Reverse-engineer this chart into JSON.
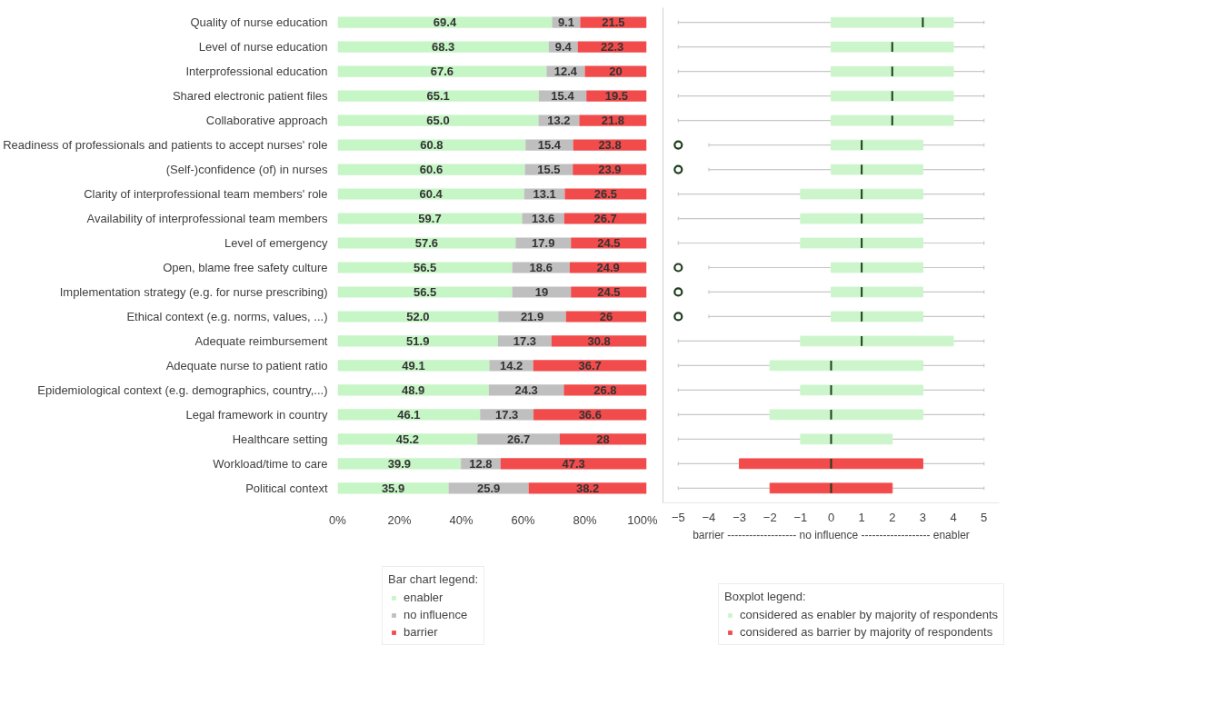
{
  "chart_data": [
    {
      "type": "bar",
      "orientation": "horizontal",
      "stacked": true,
      "legend": "bottom",
      "legend_title": "Bar chart legend:",
      "grid": false,
      "categories": [
        "Quality of nurse education",
        "Level of nurse education",
        "Interprofessional education",
        "Shared electronic patient files",
        "Collaborative approach",
        "Readiness of professionals and patients to accept nurses' role",
        "(Self-)confidence (of) in nurses",
        "Clarity of interprofessional team members' role",
        "Availability of interprofessional team members",
        "Level of emergency",
        "Open, blame free safety culture",
        "Implementation strategy (e.g. for nurse prescribing)",
        "Ethical context (e.g. norms, values, ...)",
        "Adequate reimbursement",
        "Adequate nurse to patient ratio",
        "Epidemiological context (e.g. demographics, country,...)",
        "Legal framework in country",
        "Healthcare setting",
        "Workload/time to care",
        "Political context"
      ],
      "xlim": [
        0,
        100
      ],
      "xticks": [
        {
          "value": 0,
          "label": "0%"
        },
        {
          "value": 20,
          "label": "20%"
        },
        {
          "value": 40,
          "label": "40%"
        },
        {
          "value": 60,
          "label": "60%"
        },
        {
          "value": 80,
          "label": "80%"
        },
        {
          "value": 100,
          "label": "100%"
        }
      ],
      "series": [
        {
          "name": "enabler",
          "color": "#c6f5c6",
          "values": [
            69.4,
            68.3,
            67.6,
            65.1,
            65.0,
            60.8,
            60.6,
            60.4,
            59.7,
            57.6,
            56.5,
            56.5,
            52.0,
            51.9,
            49.1,
            48.9,
            46.1,
            45.2,
            39.9,
            35.9
          ],
          "value_labels": [
            "69.4",
            "68.3",
            "67.6",
            "65.1",
            "65.0",
            "60.8",
            "60.6",
            "60.4",
            "59.7",
            "57.6",
            "56.5",
            "56.5",
            "52.0",
            "51.9",
            "49.1",
            "48.9",
            "46.1",
            "45.2",
            "39.9",
            "35.9"
          ]
        },
        {
          "name": "no influence",
          "color": "#bfbfbf",
          "values": [
            9.1,
            9.4,
            12.4,
            15.4,
            13.2,
            15.4,
            15.5,
            13.1,
            13.6,
            17.9,
            18.6,
            19,
            21.9,
            17.3,
            14.2,
            24.3,
            17.3,
            26.7,
            12.8,
            25.9
          ],
          "value_labels": [
            "9.1",
            "9.4",
            "12.4",
            "15.4",
            "13.2",
            "15.4",
            "15.5",
            "13.1",
            "13.6",
            "17.9",
            "18.6",
            "19",
            "21.9",
            "17.3",
            "14.2",
            "24.3",
            "17.3",
            "26.7",
            "12.8",
            "25.9"
          ]
        },
        {
          "name": "barrier",
          "color": "#f24b4b",
          "values": [
            21.5,
            22.3,
            20,
            19.5,
            21.8,
            23.8,
            23.9,
            26.5,
            26.7,
            24.5,
            24.9,
            24.5,
            26,
            30.8,
            36.7,
            26.8,
            36.6,
            28,
            47.3,
            38.2
          ],
          "value_labels": [
            "21.5",
            "22.3",
            "20",
            "19.5",
            "21.8",
            "23.8",
            "23.9",
            "26.5",
            "26.7",
            "24.5",
            "24.9",
            "24.5",
            "26",
            "30.8",
            "36.7",
            "26.8",
            "36.6",
            "28",
            "47.3",
            "38.2"
          ]
        }
      ]
    },
    {
      "type": "box",
      "orientation": "horizontal",
      "legend": "bottom",
      "legend_title": "Boxplot legend:",
      "grid": false,
      "tick_labels": "x",
      "xlabel": "barrier ------------------- no influence ------------------- enabler",
      "xlim": [
        -5.5,
        5.5
      ],
      "xticks": [
        -5,
        -4,
        -3,
        -2,
        -1,
        0,
        1,
        2,
        3,
        4,
        5
      ],
      "series": [
        {
          "name": "considered as enabler by majority of respondents",
          "color": "#ccf5cc",
          "boxes": [
            {
              "low": -5,
              "q1": 0,
              "median": 3,
              "q3": 4,
              "high": 5
            },
            {
              "low": -5,
              "q1": 0,
              "median": 2,
              "q3": 4,
              "high": 5
            },
            {
              "low": -5,
              "q1": 0,
              "median": 2,
              "q3": 4,
              "high": 5
            },
            {
              "low": -5,
              "q1": 0,
              "median": 2,
              "q3": 4,
              "high": 5
            },
            {
              "low": -5,
              "q1": 0,
              "median": 2,
              "q3": 4,
              "high": 5
            },
            {
              "low": -4,
              "q1": 0,
              "median": 1,
              "q3": 3,
              "high": 5,
              "outliers": [
                -5
              ]
            },
            {
              "low": -4,
              "q1": 0,
              "median": 1,
              "q3": 3,
              "high": 5,
              "outliers": [
                -5
              ]
            },
            {
              "low": -5,
              "q1": -1,
              "median": 1,
              "q3": 3,
              "high": 5
            },
            {
              "low": -5,
              "q1": -1,
              "median": 1,
              "q3": 3,
              "high": 5
            },
            {
              "low": -5,
              "q1": -1,
              "median": 1,
              "q3": 3,
              "high": 5
            },
            {
              "low": -4,
              "q1": 0,
              "median": 1,
              "q3": 3,
              "high": 5,
              "outliers": [
                -5
              ]
            },
            {
              "low": -4,
              "q1": 0,
              "median": 1,
              "q3": 3,
              "high": 5,
              "outliers": [
                -5
              ]
            },
            {
              "low": -4,
              "q1": 0,
              "median": 1,
              "q3": 3,
              "high": 5,
              "outliers": [
                -5
              ]
            },
            {
              "low": -5,
              "q1": -1,
              "median": 1,
              "q3": 4,
              "high": 5
            },
            {
              "low": -5,
              "q1": -2,
              "median": 0,
              "q3": 3,
              "high": 5
            },
            {
              "low": -5,
              "q1": -1,
              "median": 0,
              "q3": 3,
              "high": 5
            },
            {
              "low": -5,
              "q1": -2,
              "median": 0,
              "q3": 3,
              "high": 5
            },
            {
              "low": -5,
              "q1": -1,
              "median": 0,
              "q3": 2,
              "high": 5
            },
            null,
            null
          ]
        },
        {
          "name": "considered as barrier by majority of respondents",
          "color": "#f24b4b",
          "boxes": [
            null,
            null,
            null,
            null,
            null,
            null,
            null,
            null,
            null,
            null,
            null,
            null,
            null,
            null,
            null,
            null,
            null,
            null,
            {
              "low": -5,
              "q1": -3,
              "median": 0,
              "q3": 3,
              "high": 5
            },
            {
              "low": -5,
              "q1": -2,
              "median": 0,
              "q3": 2,
              "high": 5
            }
          ]
        }
      ]
    }
  ]
}
